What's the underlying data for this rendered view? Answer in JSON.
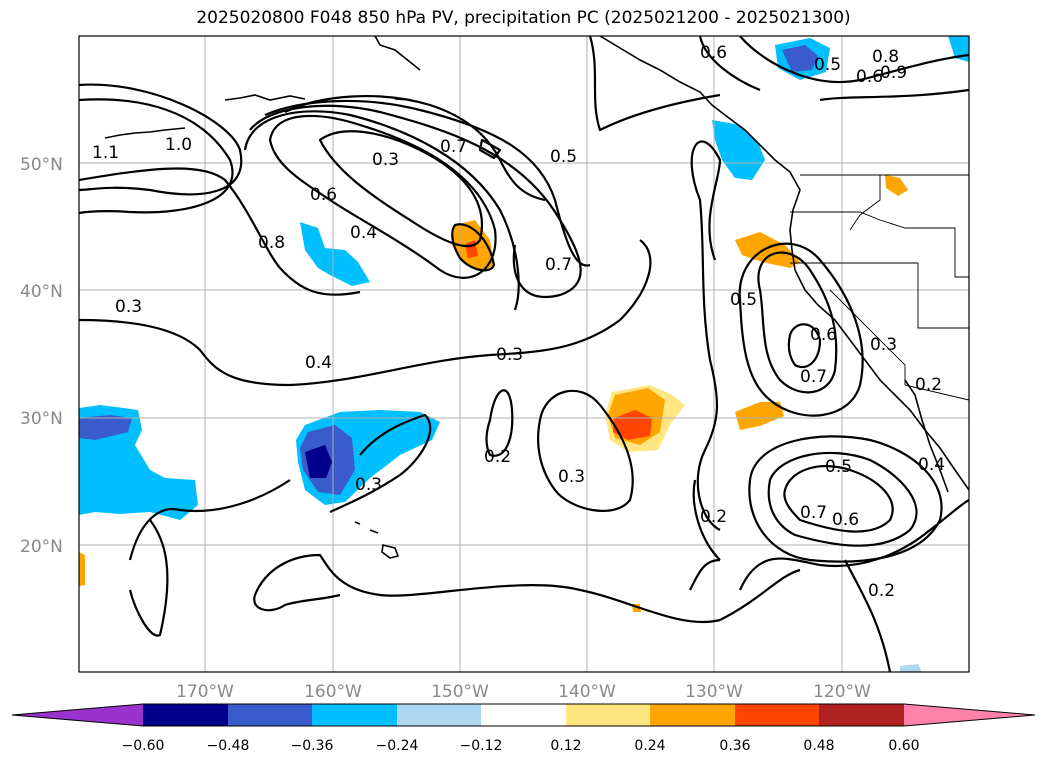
{
  "title": "2025020800 F048 850 hPa PV, precipitation PC (2025021200 - 2025021300)",
  "lat_labels": [
    "50°N",
    "40°N",
    "30°N",
    "20°N"
  ],
  "lon_labels": [
    "170°W",
    "160°W",
    "150°W",
    "140°W",
    "130°W",
    "120°W"
  ],
  "colorbar": {
    "ticks": [
      "−0.60",
      "−0.48",
      "−0.36",
      "−0.24",
      "−0.12",
      "0.12",
      "0.24",
      "0.36",
      "0.48",
      "0.60"
    ],
    "colors": [
      "#9a32cd",
      "#00008b",
      "#3a5bcc",
      "#00bfff",
      "#add8f0",
      "#ffffff",
      "#ffe680",
      "#ffa500",
      "#ff4500",
      "#b22222",
      "#ff82ab"
    ]
  },
  "contour_labels": [
    "0.6",
    "0.5",
    "0.6",
    "0.8",
    "0.9",
    "1.0",
    "1.1",
    "0.7",
    "0.5",
    "0.3",
    "0.6",
    "0.4",
    "0.8",
    "0.7",
    "0.3",
    "0.4",
    "0.3",
    "0.5",
    "0.6",
    "0.3",
    "0.7",
    "0.2",
    "0.2",
    "0.3",
    "0.2",
    "0.3",
    "0.5",
    "0.7",
    "0.6",
    "0.4",
    "0.2"
  ]
}
